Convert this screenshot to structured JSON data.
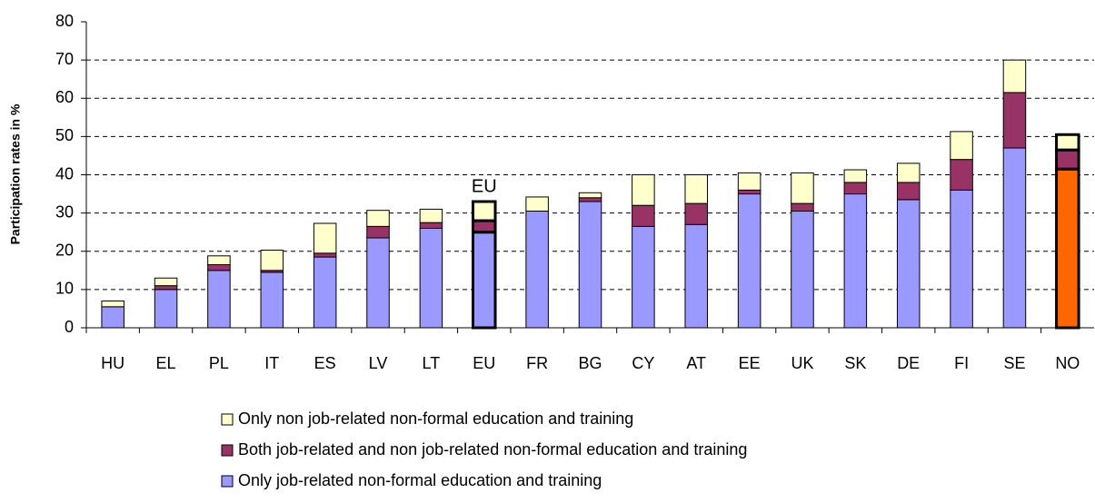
{
  "chart_data": {
    "type": "stacked_bar",
    "ylabel": "Participation rates in %",
    "categories": [
      "HU",
      "EL",
      "PL",
      "IT",
      "ES",
      "LV",
      "LT",
      "EU",
      "FR",
      "BG",
      "CY",
      "AT",
      "EE",
      "UK",
      "SK",
      "DE",
      "FI",
      "SE",
      "NO"
    ],
    "series": [
      {
        "name": "Only job-related non-formal education and training",
        "color": "#9999ff",
        "colors": [
          "#9999ff",
          "#9999ff",
          "#9999ff",
          "#9999ff",
          "#9999ff",
          "#9999ff",
          "#9999ff",
          "#9999ff",
          "#9999ff",
          "#9999ff",
          "#9999ff",
          "#9999ff",
          "#9999ff",
          "#9999ff",
          "#9999ff",
          "#9999ff",
          "#9999ff",
          "#9999ff",
          "#ff6600"
        ],
        "values": [
          5.5,
          10,
          15,
          14.5,
          18.5,
          23.5,
          26,
          25,
          30.5,
          33,
          26.5,
          27,
          35,
          30.5,
          35,
          33.5,
          36,
          47,
          41.5
        ]
      },
      {
        "name": "Both job-related and non job-related non-formal education and training",
        "color": "#993366",
        "values": [
          0,
          1,
          1.5,
          0.5,
          1,
          3,
          1.5,
          3,
          0,
          1,
          5.5,
          5.5,
          1,
          2,
          3,
          4.5,
          8,
          14.5,
          5
        ]
      },
      {
        "name": "Only non job-related non-formal education and training",
        "color": "#ffffcc",
        "values": [
          1.5,
          2,
          2.3,
          5.3,
          7.8,
          4.2,
          3.5,
          5,
          3.7,
          1.3,
          8,
          7.5,
          4.5,
          8,
          3.3,
          5,
          7.3,
          8.5,
          4
        ]
      }
    ],
    "emphasized": [
      "EU",
      "NO"
    ],
    "annotation": "EU",
    "ylim": [
      0,
      80
    ],
    "yticks": [
      0,
      10,
      20,
      30,
      40,
      50,
      60,
      70,
      80
    ],
    "grid": true
  }
}
